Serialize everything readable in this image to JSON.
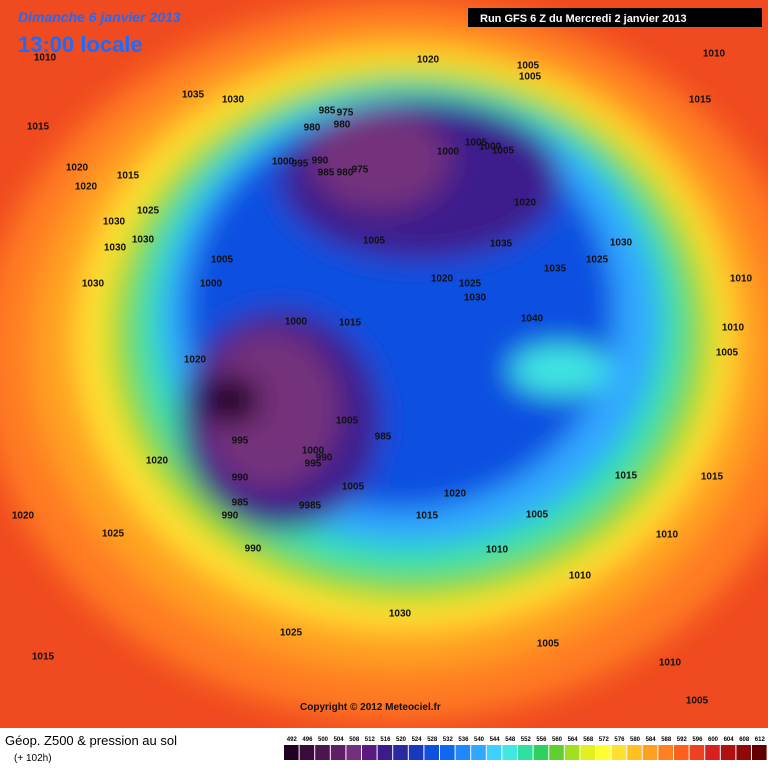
{
  "header": {
    "date": "Dimanche 6 janvier 2013",
    "time": "13:00 locale",
    "run": "Run GFS 6 Z du Mercredi 2 janvier 2013"
  },
  "isobars": [
    1010,
    1035,
    1030,
    1015,
    1020,
    1005,
    1005,
    1010,
    1015,
    985,
    975,
    980,
    980,
    1000,
    1005,
    1000,
    1005,
    990,
    1000,
    995,
    975,
    985,
    980,
    1020,
    1015,
    1020,
    1025,
    1020,
    1030,
    1030,
    1030,
    1005,
    1035,
    1030,
    1005,
    1025,
    1035,
    1020,
    1025,
    1030,
    1000,
    1030,
    1010,
    1040,
    1000,
    1015,
    1010,
    1005,
    1020,
    1005,
    985,
    995,
    1000,
    995,
    990,
    1020,
    990,
    1015,
    1015,
    1005,
    985,
    9985,
    1020,
    1015,
    1005,
    990,
    1020,
    1025,
    1010,
    990,
    1010,
    1010,
    1030,
    1025,
    1005,
    1015,
    1010,
    1005
  ],
  "copyright": "Copyright © 2012 Meteociel.fr",
  "footer": {
    "title": "Géop. Z500 & pression au sol",
    "lead": "(+ 102h)"
  },
  "color_scale": {
    "ticks": [
      492,
      496,
      500,
      504,
      508,
      512,
      516,
      520,
      524,
      528,
      532,
      536,
      540,
      544,
      548,
      552,
      556,
      560,
      564,
      568,
      572,
      576,
      580,
      584,
      588,
      592,
      596,
      600,
      604,
      608,
      612
    ],
    "colors": [
      "#200020",
      "#3a0a3a",
      "#4c1450",
      "#601e66",
      "#74307c",
      "#5a1a80",
      "#3c1c8c",
      "#2a2aa0",
      "#1838c0",
      "#1050e0",
      "#1068f0",
      "#2088ff",
      "#30a8ff",
      "#40d0ff",
      "#40e8e0",
      "#30e0a0",
      "#30d060",
      "#60d030",
      "#a0e020",
      "#e0f020",
      "#ffff30",
      "#ffe030",
      "#ffc020",
      "#ffa020",
      "#ff8020",
      "#ff6020",
      "#f04020",
      "#d82020",
      "#b01010",
      "#900808",
      "#600000"
    ]
  }
}
